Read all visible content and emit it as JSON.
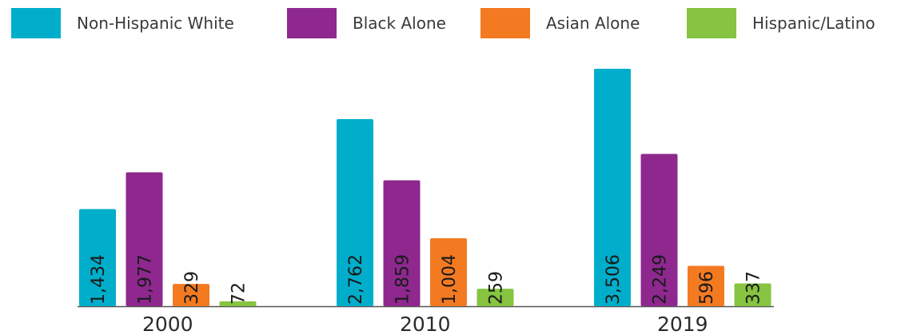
{
  "chart_data": {
    "type": "bar",
    "categories": [
      "2000",
      "2010",
      "2019"
    ],
    "series": [
      {
        "name": "Non-Hispanic White",
        "color": "#00AECB",
        "values": [
          1434,
          2762,
          3506
        ],
        "labels": [
          "1,434",
          "2,762",
          "3,506"
        ]
      },
      {
        "name": "Black Alone",
        "color": "#8E288F",
        "values": [
          1977,
          1859,
          2249
        ],
        "labels": [
          "1,977",
          "1,859",
          "2,249"
        ]
      },
      {
        "name": "Asian Alone",
        "color": "#F47A22",
        "values": [
          329,
          1004,
          596
        ],
        "labels": [
          "329",
          "1,004",
          "596"
        ]
      },
      {
        "name": "Hispanic/Latino",
        "color": "#86C441",
        "values": [
          72,
          259,
          337
        ],
        "labels": [
          "72",
          "259",
          "337"
        ]
      }
    ],
    "legend_position": "top",
    "grid": false
  }
}
